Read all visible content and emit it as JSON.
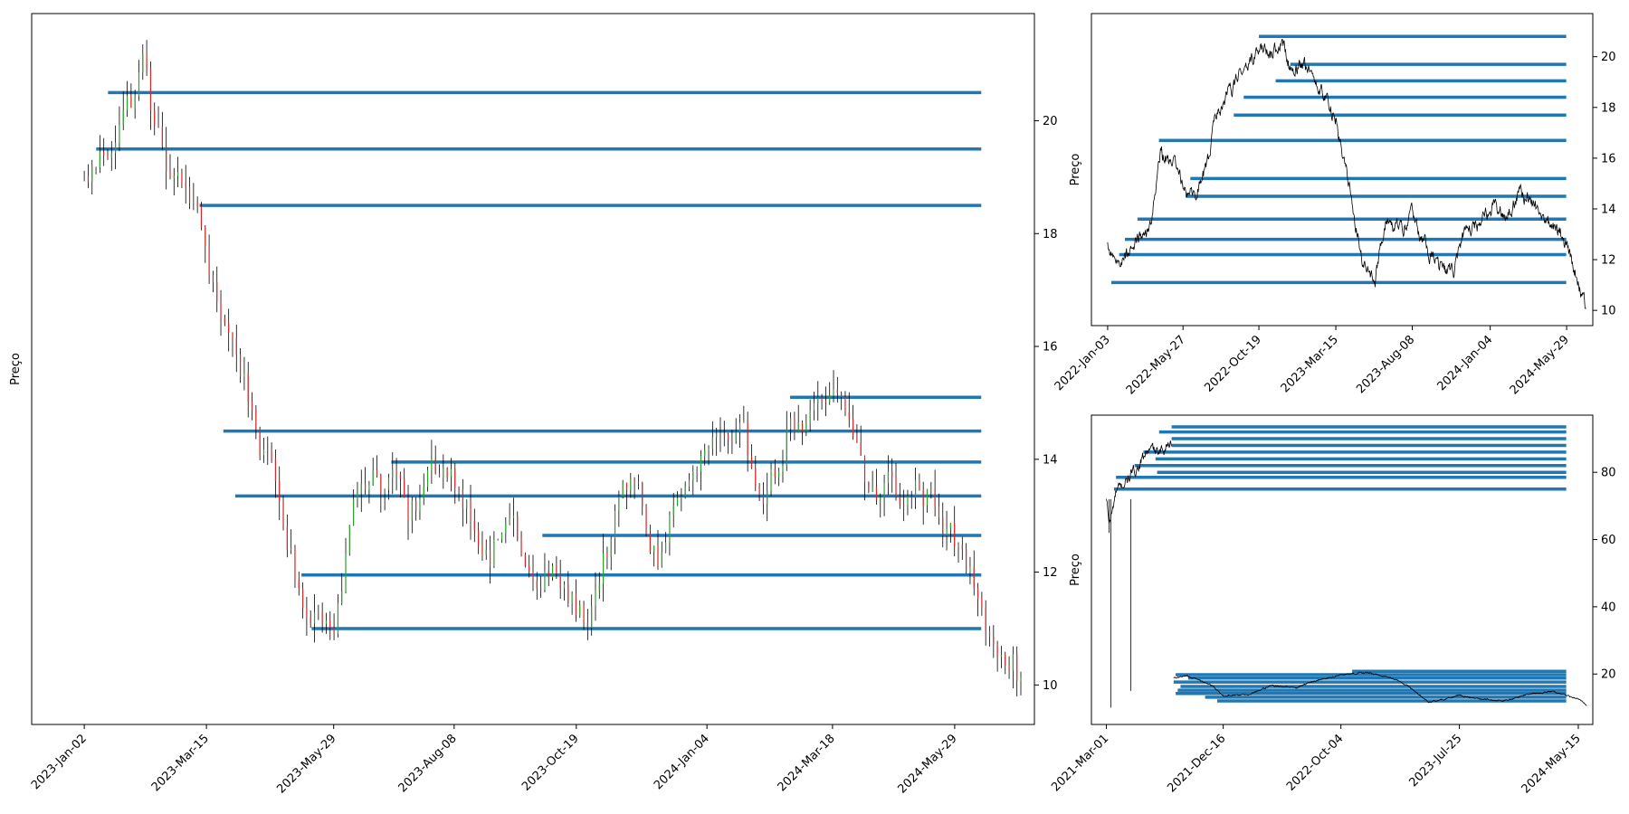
{
  "colors": {
    "level_line": "#1f77b4",
    "price_line": "#000000",
    "candle_up": "#2ca02c",
    "candle_down": "#d62728"
  },
  "chart_data": [
    {
      "name": "main",
      "type": "line",
      "subtype": "candlestick-with-horizontal-levels",
      "title": "",
      "xlabel": "",
      "ylabel": "Preço",
      "x_ticks": [
        "2023-Jan-02",
        "2023-Mar-15",
        "2023-May-29",
        "2023-Aug-08",
        "2023-Oct-19",
        "2024-Jan-04",
        "2024-Mar-18",
        "2024-May-29"
      ],
      "y_ticks": [
        10,
        12,
        14,
        16,
        18,
        20
      ],
      "ylim": [
        9.3,
        21.9
      ],
      "x_range": [
        "2022-Dec-02",
        "2024-Jul-15"
      ],
      "grid": false,
      "y_axis_side": "right",
      "price": [
        [
          "2023-Jan-02",
          18.9
        ],
        [
          "2023-Jan-09",
          19.2
        ],
        [
          "2023-Jan-16",
          19.5
        ],
        [
          "2023-Jan-23",
          20.2
        ],
        [
          "2023-Jan-30",
          20.4
        ],
        [
          "2023-Feb-06",
          21.1
        ],
        [
          "2023-Feb-13",
          19.7
        ],
        [
          "2023-Feb-20",
          19.2
        ],
        [
          "2023-Feb-27",
          18.8
        ],
        [
          "2023-Mar-06",
          18.6
        ],
        [
          "2023-Mar-15",
          17.6
        ],
        [
          "2023-Mar-22",
          16.8
        ],
        [
          "2023-Mar-29",
          16.2
        ],
        [
          "2023-Apr-05",
          15.6
        ],
        [
          "2023-Apr-12",
          14.8
        ],
        [
          "2023-Apr-19",
          14.0
        ],
        [
          "2023-Apr-26",
          13.2
        ],
        [
          "2023-May-03",
          12.5
        ],
        [
          "2023-May-10",
          11.2
        ],
        [
          "2023-May-17",
          11.5
        ],
        [
          "2023-May-24",
          11.2
        ],
        [
          "2023-May-29",
          11.3
        ],
        [
          "2023-Jun-07",
          12.8
        ],
        [
          "2023-Jun-14",
          13.5
        ],
        [
          "2023-Jun-21",
          13.9
        ],
        [
          "2023-Jun-28",
          13.6
        ],
        [
          "2023-Jul-05",
          13.8
        ],
        [
          "2023-Jul-12",
          12.7
        ],
        [
          "2023-Jul-19",
          13.2
        ],
        [
          "2023-Jul-26",
          13.7
        ],
        [
          "2023-Aug-02",
          13.9
        ],
        [
          "2023-Aug-08",
          13.8
        ],
        [
          "2023-Aug-15",
          13.4
        ],
        [
          "2023-Aug-22",
          13.0
        ],
        [
          "2023-Aug-29",
          12.2
        ],
        [
          "2023-Sep-05",
          12.7
        ],
        [
          "2023-Sep-12",
          12.9
        ],
        [
          "2023-Sep-19",
          12.1
        ],
        [
          "2023-Sep-26",
          11.5
        ],
        [
          "2023-Oct-03",
          11.9
        ],
        [
          "2023-Oct-10",
          11.7
        ],
        [
          "2023-Oct-19",
          11.3
        ],
        [
          "2023-Oct-26",
          11.2
        ],
        [
          "2023-Nov-02",
          12.1
        ],
        [
          "2023-Nov-09",
          12.7
        ],
        [
          "2023-Nov-16",
          13.3
        ],
        [
          "2023-Nov-23",
          13.5
        ],
        [
          "2023-Nov-30",
          12.6
        ],
        [
          "2023-Dec-07",
          12.2
        ],
        [
          "2023-Dec-14",
          13.1
        ],
        [
          "2023-Dec-21",
          13.4
        ],
        [
          "2023-Dec-28",
          13.6
        ],
        [
          "2024-Jan-04",
          14.1
        ],
        [
          "2024-Jan-11",
          14.3
        ],
        [
          "2024-Jan-18",
          13.8
        ],
        [
          "2024-Jan-25",
          14.0
        ],
        [
          "2024-Feb-01",
          13.6
        ],
        [
          "2024-Feb-08",
          13.7
        ],
        [
          "2024-Feb-15",
          13.9
        ],
        [
          "2024-Feb-22",
          14.8
        ],
        [
          "2024-Mar-01",
          14.5
        ],
        [
          "2024-Mar-08",
          14.6
        ],
        [
          "2024-Mar-18",
          14.9
        ],
        [
          "2024-Mar-25",
          14.6
        ],
        [
          "2024-Apr-01",
          14.2
        ],
        [
          "2024-Apr-08",
          13.4
        ],
        [
          "2024-Apr-15",
          13.3
        ],
        [
          "2024-Apr-22",
          13.6
        ],
        [
          "2024-Apr-29",
          13.2
        ],
        [
          "2024-May-06",
          13.5
        ],
        [
          "2024-May-13",
          13.4
        ],
        [
          "2024-May-20",
          13.2
        ],
        [
          "2024-May-29",
          12.5
        ],
        [
          "2024-Jun-05",
          12.0
        ],
        [
          "2024-Jun-12",
          11.6
        ],
        [
          "2024-Jun-19",
          11.1
        ],
        [
          "2024-Jun-26",
          10.9
        ],
        [
          "2024-Jul-03",
          10.6
        ],
        [
          "2024-Jul-08",
          10.0
        ]
      ],
      "levels": [
        {
          "value": 20.5,
          "start": "2023-Jan-16"
        },
        {
          "value": 19.5,
          "start": "2023-Jan-09"
        },
        {
          "value": 18.5,
          "start": "2023-Mar-11"
        },
        {
          "value": 15.1,
          "start": "2024-Feb-22"
        },
        {
          "value": 14.5,
          "start": "2023-Mar-25"
        },
        {
          "value": 13.95,
          "start": "2023-Jul-02"
        },
        {
          "value": 13.35,
          "start": "2023-Apr-01"
        },
        {
          "value": 12.65,
          "start": "2023-Sep-29"
        },
        {
          "value": 11.95,
          "start": "2023-May-10"
        },
        {
          "value": 11.0,
          "start": "2023-May-16"
        }
      ]
    },
    {
      "name": "top-right",
      "type": "line",
      "subtype": "price-with-horizontal-levels",
      "title": "",
      "xlabel": "",
      "ylabel": "Preço",
      "x_ticks": [
        "2022-Jan-03",
        "2022-May-27",
        "2022-Oct-19",
        "2023-Mar-15",
        "2023-Aug-08",
        "2024-Jan-04",
        "2024-May-29"
      ],
      "y_ticks": [
        10,
        12,
        14,
        16,
        18,
        20
      ],
      "ylim": [
        9.4,
        21.7
      ],
      "x_range": [
        "2021-Dec-03",
        "2024-Jul-18"
      ],
      "grid": false,
      "y_axis_side": "right",
      "price": [
        [
          "2022-Jan-03",
          12.5
        ],
        [
          "2022-Jan-20",
          11.7
        ],
        [
          "2022-Feb-10",
          12.3
        ],
        [
          "2022-Mar-03",
          12.8
        ],
        [
          "2022-Mar-25",
          13.3
        ],
        [
          "2022-Apr-15",
          16.2
        ],
        [
          "2022-May-06",
          15.9
        ],
        [
          "2022-May-27",
          15.0
        ],
        [
          "2022-Jun-20",
          14.7
        ],
        [
          "2022-Jul-10",
          15.6
        ],
        [
          "2022-Jul-28",
          17.5
        ],
        [
          "2022-Aug-20",
          18.4
        ],
        [
          "2022-Sep-10",
          19.2
        ],
        [
          "2022-Oct-01",
          19.7
        ],
        [
          "2022-Oct-19",
          20.3
        ],
        [
          "2022-Nov-10",
          20.0
        ],
        [
          "2022-Dec-01",
          20.7
        ],
        [
          "2022-Dec-20",
          19.4
        ],
        [
          "2023-Jan-15",
          19.7
        ],
        [
          "2023-Feb-10",
          18.9
        ],
        [
          "2023-Mar-15",
          17.6
        ],
        [
          "2023-Apr-10",
          14.8
        ],
        [
          "2023-May-05",
          11.9
        ],
        [
          "2023-May-29",
          11.2
        ],
        [
          "2023-Jun-20",
          13.6
        ],
        [
          "2023-Jul-15",
          13.1
        ],
        [
          "2023-Aug-08",
          13.7
        ],
        [
          "2023-Sep-01",
          12.6
        ],
        [
          "2023-Oct-01",
          11.7
        ],
        [
          "2023-Oct-25",
          11.4
        ],
        [
          "2023-Nov-20",
          13.4
        ],
        [
          "2023-Dec-15",
          13.3
        ],
        [
          "2024-Jan-04",
          14.1
        ],
        [
          "2024-Feb-01",
          13.8
        ],
        [
          "2024-Mar-01",
          14.7
        ],
        [
          "2024-Mar-25",
          14.3
        ],
        [
          "2024-Apr-20",
          13.4
        ],
        [
          "2024-May-15",
          13.2
        ],
        [
          "2024-May-29",
          12.4
        ],
        [
          "2024-Jun-20",
          11.2
        ],
        [
          "2024-Jul-05",
          10.0
        ]
      ],
      "levels": [
        {
          "value": 20.8,
          "start": "2022-Oct-19"
        },
        {
          "value": 19.7,
          "start": "2022-Dec-18"
        },
        {
          "value": 19.05,
          "start": "2022-Nov-20"
        },
        {
          "value": 18.4,
          "start": "2022-Sep-20"
        },
        {
          "value": 17.7,
          "start": "2022-Sep-01"
        },
        {
          "value": 16.7,
          "start": "2022-Apr-11"
        },
        {
          "value": 15.2,
          "start": "2022-Jun-10"
        },
        {
          "value": 14.5,
          "start": "2022-Jun-01"
        },
        {
          "value": 13.6,
          "start": "2022-Mar-01"
        },
        {
          "value": 12.8,
          "start": "2022-Feb-05"
        },
        {
          "value": 12.2,
          "start": "2022-Jan-25"
        },
        {
          "value": 11.1,
          "start": "2022-Jan-10"
        }
      ]
    },
    {
      "name": "bottom-right",
      "type": "line",
      "subtype": "price-with-horizontal-levels",
      "title": "",
      "xlabel": "",
      "ylabel": "Preço",
      "x_ticks": [
        "2021-Mar-01",
        "2021-Dec-16",
        "2022-Oct-04",
        "2023-Jul-25",
        "2024-May-15"
      ],
      "y_ticks": [
        20,
        40,
        60,
        80
      ],
      "ylim": [
        5,
        97
      ],
      "x_range": [
        "2021-Jan-23",
        "2024-Jun-20"
      ],
      "grid": false,
      "y_axis_side": "right",
      "price_early": [
        [
          "2021-Mar-01",
          72
        ],
        [
          "2021-Mar-08",
          65
        ],
        [
          "2021-Mar-15",
          68
        ],
        [
          "2021-Mar-25",
          74
        ],
        [
          "2021-Apr-10",
          76
        ],
        [
          "2021-May-01",
          79
        ],
        [
          "2021-May-20",
          82
        ],
        [
          "2021-Jun-10",
          86
        ],
        [
          "2021-Jun-25",
          87
        ],
        [
          "2021-Jul-10",
          85
        ],
        [
          "2021-Jul-25",
          88
        ],
        [
          "2021-Aug-10",
          89
        ]
      ],
      "price_late": [
        [
          "2021-Aug-15",
          18.8
        ],
        [
          "2021-Sep-15",
          19.5
        ],
        [
          "2021-Oct-20",
          18.0
        ],
        [
          "2021-Nov-20",
          16.5
        ],
        [
          "2021-Dec-16",
          13.5
        ],
        [
          "2022-Feb-15",
          13.8
        ],
        [
          "2022-Apr-15",
          16.5
        ],
        [
          "2022-Jun-15",
          16.0
        ],
        [
          "2022-Aug-15",
          18.4
        ],
        [
          "2022-Oct-04",
          19.8
        ],
        [
          "2022-Dec-05",
          20.5
        ],
        [
          "2023-Feb-05",
          19.0
        ],
        [
          "2023-Mar-20",
          16.5
        ],
        [
          "2023-May-10",
          11.5
        ],
        [
          "2023-Jul-25",
          13.6
        ],
        [
          "2023-Sep-20",
          12.4
        ],
        [
          "2023-Nov-15",
          12.0
        ],
        [
          "2024-Jan-10",
          14.0
        ],
        [
          "2024-Mar-10",
          14.8
        ],
        [
          "2024-May-15",
          12.7
        ],
        [
          "2024-Jun-05",
          10.8
        ]
      ],
      "levels": [
        {
          "value": 93.5,
          "start": "2021-Aug-10"
        },
        {
          "value": 92.0,
          "start": "2021-Jul-10"
        },
        {
          "value": 90.0,
          "start": "2021-Aug-10"
        },
        {
          "value": 88.0,
          "start": "2021-Aug-10"
        },
        {
          "value": 86.0,
          "start": "2021-Jun-01"
        },
        {
          "value": 84.0,
          "start": "2021-Jul-01"
        },
        {
          "value": 82.0,
          "start": "2021-May-10"
        },
        {
          "value": 80.0,
          "start": "2021-Jul-05"
        },
        {
          "value": 78.5,
          "start": "2021-Mar-25"
        },
        {
          "value": 75.0,
          "start": "2021-Mar-20"
        },
        {
          "value": 20.8,
          "start": "2022-Nov-01"
        },
        {
          "value": 19.8,
          "start": "2021-Aug-20"
        },
        {
          "value": 18.8,
          "start": "2021-Sep-20"
        },
        {
          "value": 17.6,
          "start": "2021-Aug-15"
        },
        {
          "value": 16.3,
          "start": "2021-Sep-01"
        },
        {
          "value": 15.2,
          "start": "2021-Aug-25"
        },
        {
          "value": 14.2,
          "start": "2021-Aug-20"
        },
        {
          "value": 13.1,
          "start": "2021-Nov-01"
        },
        {
          "value": 12.0,
          "start": "2021-Dec-01"
        }
      ]
    }
  ]
}
